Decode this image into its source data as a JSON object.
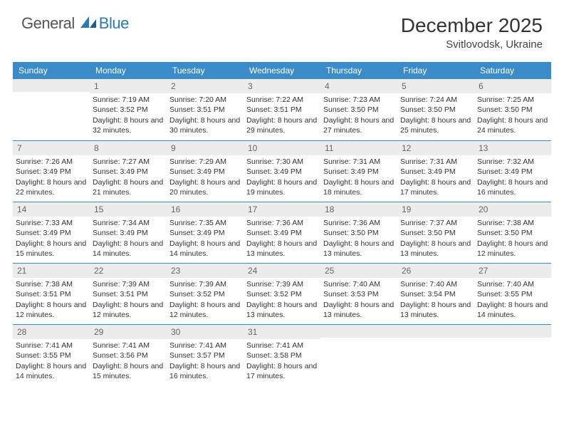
{
  "brand": {
    "text1": "General",
    "text2": "Blue"
  },
  "title": "December 2025",
  "location": "Svitlovodsk, Ukraine",
  "theme": {
    "header_bg": "#3b8bc8",
    "header_text": "#ffffff",
    "daynum_bg": "#ececec",
    "daynum_text": "#666666",
    "border_color": "#3b8bc8",
    "body_text": "#333333",
    "page_bg": "#ffffff",
    "title_fontsize": 28,
    "day_fontsize": 12,
    "cell_fontsize": 10.5
  },
  "day_names": [
    "Sunday",
    "Monday",
    "Tuesday",
    "Wednesday",
    "Thursday",
    "Friday",
    "Saturday"
  ],
  "weeks": [
    [
      {
        "n": "",
        "sr": "",
        "ss": "",
        "dl": ""
      },
      {
        "n": "1",
        "sr": "7:19 AM",
        "ss": "3:52 PM",
        "dl": "8 hours and 32 minutes."
      },
      {
        "n": "2",
        "sr": "7:20 AM",
        "ss": "3:51 PM",
        "dl": "8 hours and 30 minutes."
      },
      {
        "n": "3",
        "sr": "7:22 AM",
        "ss": "3:51 PM",
        "dl": "8 hours and 29 minutes."
      },
      {
        "n": "4",
        "sr": "7:23 AM",
        "ss": "3:50 PM",
        "dl": "8 hours and 27 minutes."
      },
      {
        "n": "5",
        "sr": "7:24 AM",
        "ss": "3:50 PM",
        "dl": "8 hours and 25 minutes."
      },
      {
        "n": "6",
        "sr": "7:25 AM",
        "ss": "3:50 PM",
        "dl": "8 hours and 24 minutes."
      }
    ],
    [
      {
        "n": "7",
        "sr": "7:26 AM",
        "ss": "3:49 PM",
        "dl": "8 hours and 22 minutes."
      },
      {
        "n": "8",
        "sr": "7:27 AM",
        "ss": "3:49 PM",
        "dl": "8 hours and 21 minutes."
      },
      {
        "n": "9",
        "sr": "7:29 AM",
        "ss": "3:49 PM",
        "dl": "8 hours and 20 minutes."
      },
      {
        "n": "10",
        "sr": "7:30 AM",
        "ss": "3:49 PM",
        "dl": "8 hours and 19 minutes."
      },
      {
        "n": "11",
        "sr": "7:31 AM",
        "ss": "3:49 PM",
        "dl": "8 hours and 18 minutes."
      },
      {
        "n": "12",
        "sr": "7:31 AM",
        "ss": "3:49 PM",
        "dl": "8 hours and 17 minutes."
      },
      {
        "n": "13",
        "sr": "7:32 AM",
        "ss": "3:49 PM",
        "dl": "8 hours and 16 minutes."
      }
    ],
    [
      {
        "n": "14",
        "sr": "7:33 AM",
        "ss": "3:49 PM",
        "dl": "8 hours and 15 minutes."
      },
      {
        "n": "15",
        "sr": "7:34 AM",
        "ss": "3:49 PM",
        "dl": "8 hours and 14 minutes."
      },
      {
        "n": "16",
        "sr": "7:35 AM",
        "ss": "3:49 PM",
        "dl": "8 hours and 14 minutes."
      },
      {
        "n": "17",
        "sr": "7:36 AM",
        "ss": "3:49 PM",
        "dl": "8 hours and 13 minutes."
      },
      {
        "n": "18",
        "sr": "7:36 AM",
        "ss": "3:50 PM",
        "dl": "8 hours and 13 minutes."
      },
      {
        "n": "19",
        "sr": "7:37 AM",
        "ss": "3:50 PM",
        "dl": "8 hours and 13 minutes."
      },
      {
        "n": "20",
        "sr": "7:38 AM",
        "ss": "3:50 PM",
        "dl": "8 hours and 12 minutes."
      }
    ],
    [
      {
        "n": "21",
        "sr": "7:38 AM",
        "ss": "3:51 PM",
        "dl": "8 hours and 12 minutes."
      },
      {
        "n": "22",
        "sr": "7:39 AM",
        "ss": "3:51 PM",
        "dl": "8 hours and 12 minutes."
      },
      {
        "n": "23",
        "sr": "7:39 AM",
        "ss": "3:52 PM",
        "dl": "8 hours and 12 minutes."
      },
      {
        "n": "24",
        "sr": "7:39 AM",
        "ss": "3:52 PM",
        "dl": "8 hours and 13 minutes."
      },
      {
        "n": "25",
        "sr": "7:40 AM",
        "ss": "3:53 PM",
        "dl": "8 hours and 13 minutes."
      },
      {
        "n": "26",
        "sr": "7:40 AM",
        "ss": "3:54 PM",
        "dl": "8 hours and 13 minutes."
      },
      {
        "n": "27",
        "sr": "7:40 AM",
        "ss": "3:55 PM",
        "dl": "8 hours and 14 minutes."
      }
    ],
    [
      {
        "n": "28",
        "sr": "7:41 AM",
        "ss": "3:55 PM",
        "dl": "8 hours and 14 minutes."
      },
      {
        "n": "29",
        "sr": "7:41 AM",
        "ss": "3:56 PM",
        "dl": "8 hours and 15 minutes."
      },
      {
        "n": "30",
        "sr": "7:41 AM",
        "ss": "3:57 PM",
        "dl": "8 hours and 16 minutes."
      },
      {
        "n": "31",
        "sr": "7:41 AM",
        "ss": "3:58 PM",
        "dl": "8 hours and 17 minutes."
      },
      {
        "n": "",
        "sr": "",
        "ss": "",
        "dl": ""
      },
      {
        "n": "",
        "sr": "",
        "ss": "",
        "dl": ""
      },
      {
        "n": "",
        "sr": "",
        "ss": "",
        "dl": ""
      }
    ]
  ],
  "labels": {
    "sunrise": "Sunrise:",
    "sunset": "Sunset:",
    "daylight": "Daylight:"
  }
}
